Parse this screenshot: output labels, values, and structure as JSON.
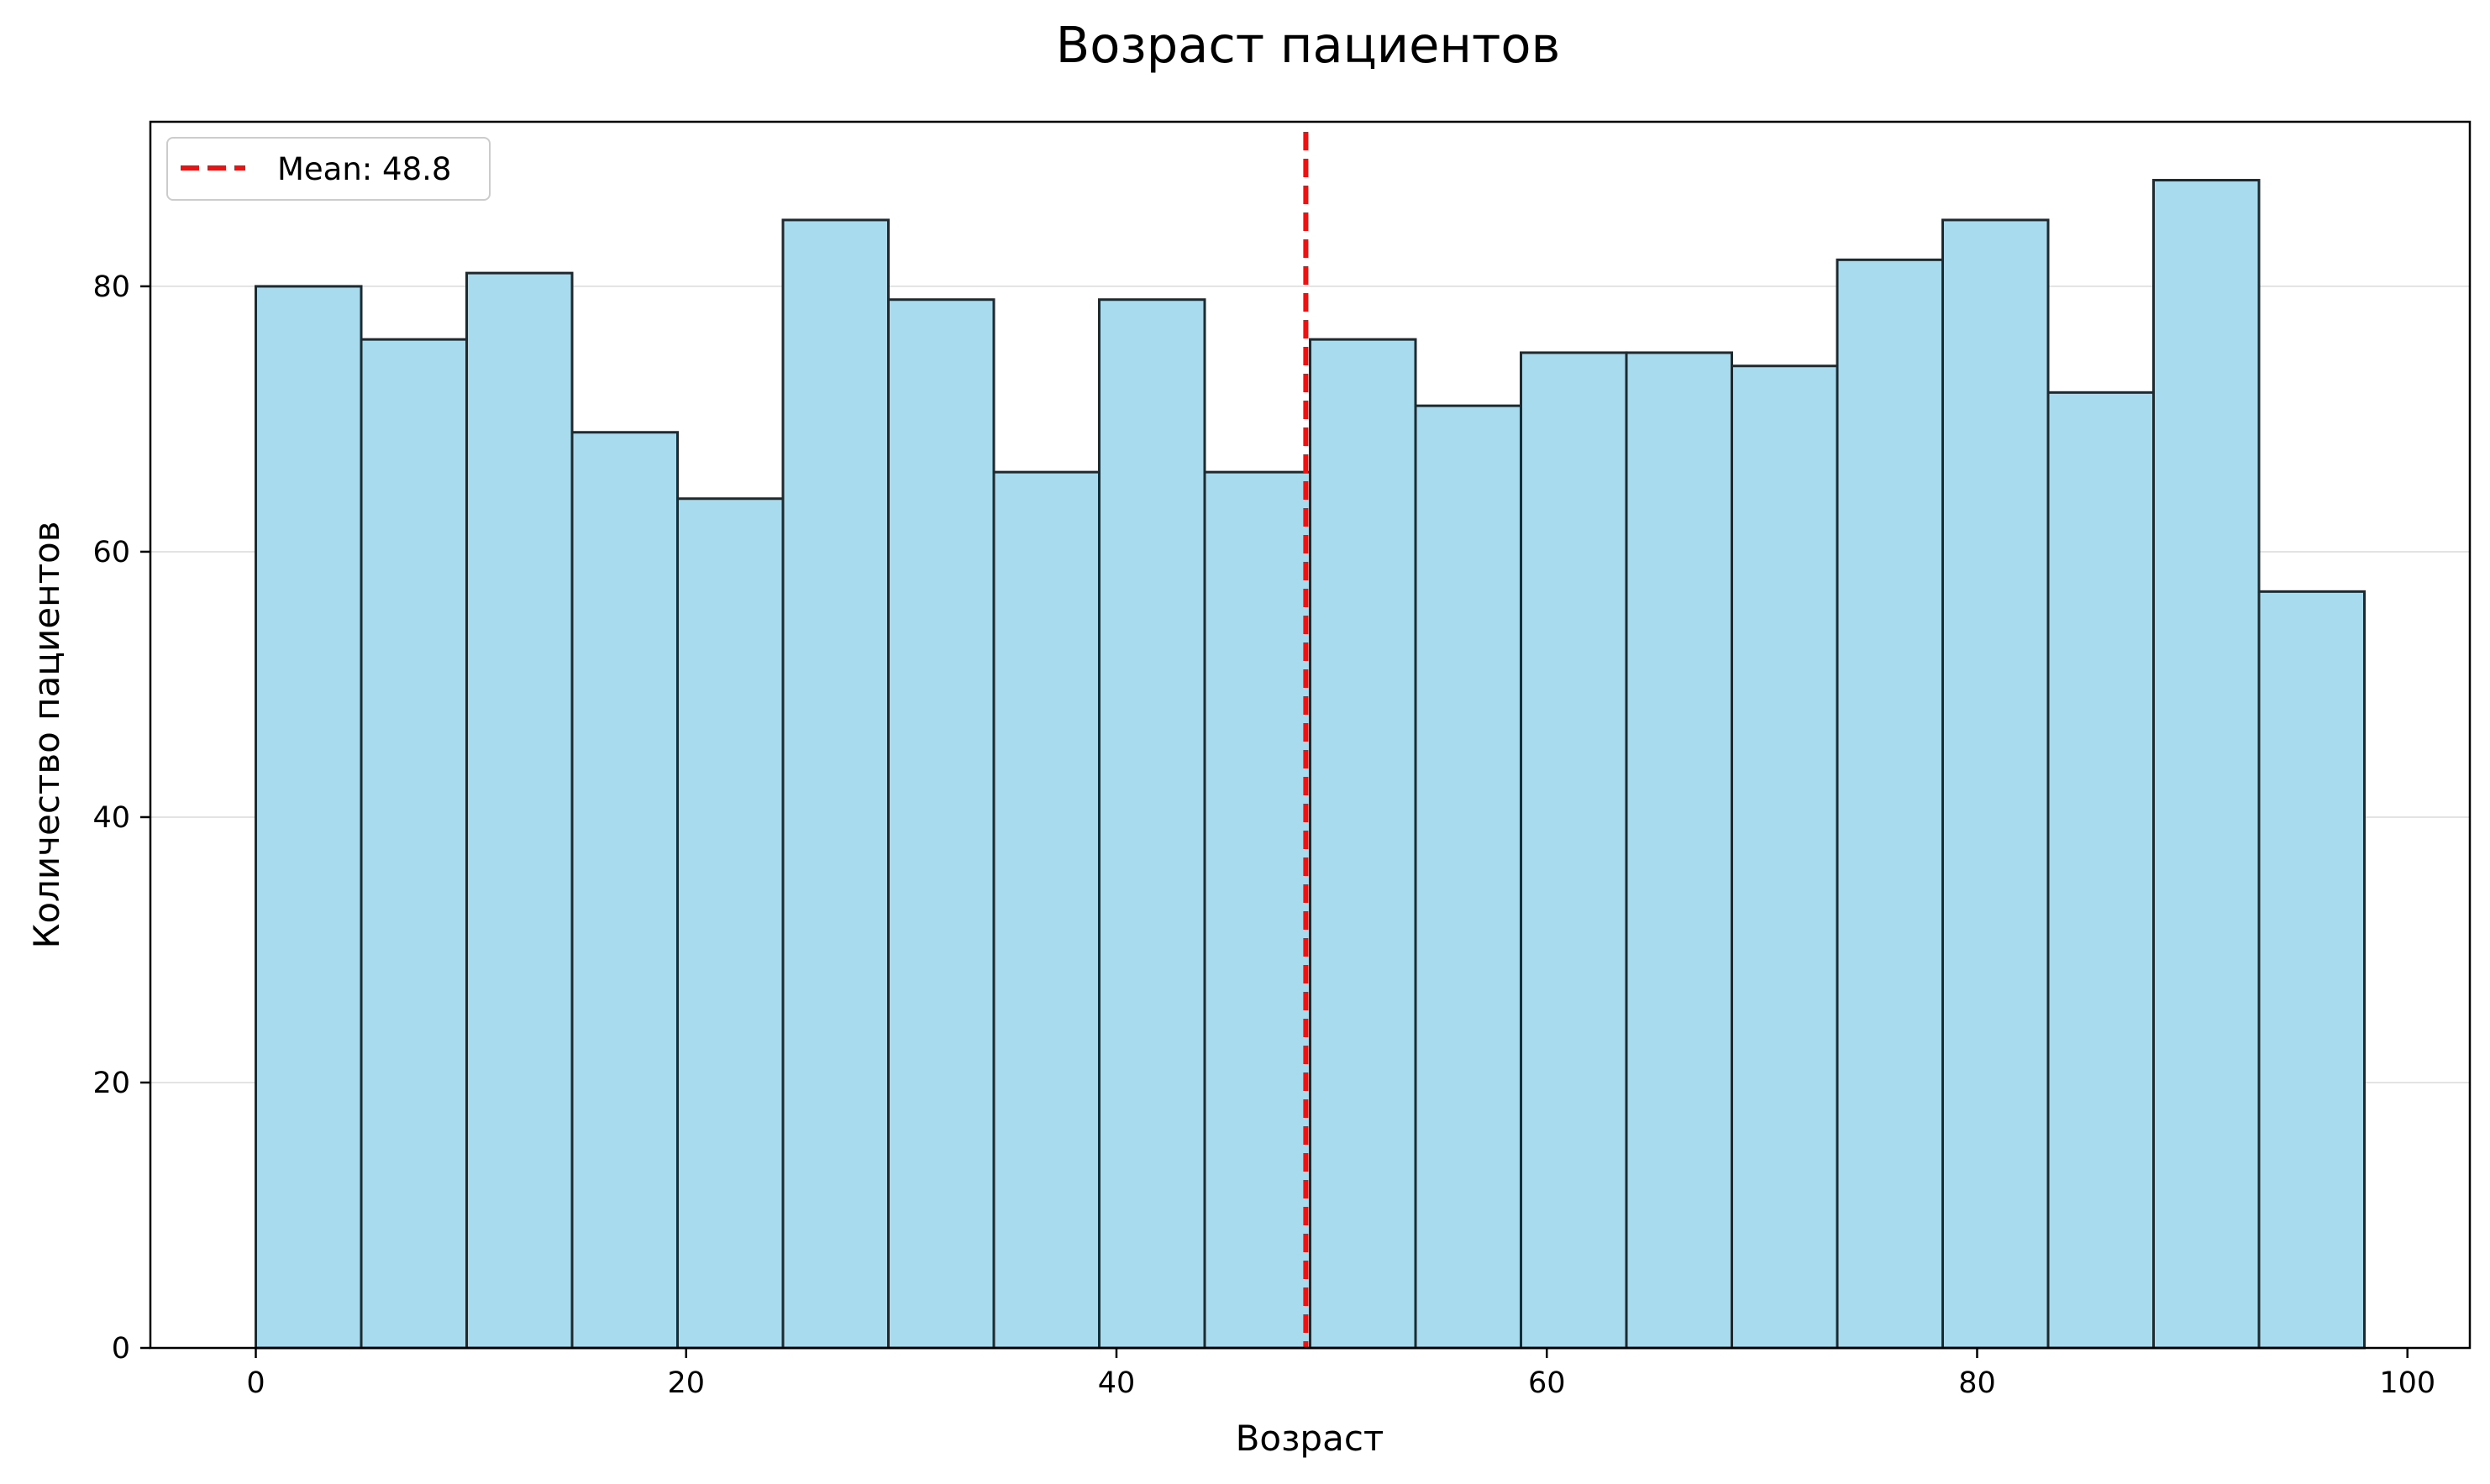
{
  "chart_data": {
    "type": "bar",
    "title": "Возраст пациентов",
    "xlabel": "Возраст",
    "ylabel": "Количество пациентов",
    "bins": [
      {
        "start": 0.0,
        "end": 4.9,
        "count": 80
      },
      {
        "start": 4.9,
        "end": 9.8,
        "count": 76
      },
      {
        "start": 9.8,
        "end": 14.7,
        "count": 81
      },
      {
        "start": 14.7,
        "end": 19.6,
        "count": 69
      },
      {
        "start": 19.6,
        "end": 24.5,
        "count": 64
      },
      {
        "start": 24.5,
        "end": 29.4,
        "count": 85
      },
      {
        "start": 29.4,
        "end": 34.3,
        "count": 79
      },
      {
        "start": 34.3,
        "end": 39.2,
        "count": 66
      },
      {
        "start": 39.2,
        "end": 44.1,
        "count": 79
      },
      {
        "start": 44.1,
        "end": 49.0,
        "count": 66
      },
      {
        "start": 49.0,
        "end": 53.9,
        "count": 76
      },
      {
        "start": 53.9,
        "end": 58.8,
        "count": 71
      },
      {
        "start": 58.8,
        "end": 63.7,
        "count": 75
      },
      {
        "start": 63.7,
        "end": 68.6,
        "count": 75
      },
      {
        "start": 68.6,
        "end": 73.5,
        "count": 74
      },
      {
        "start": 73.5,
        "end": 78.4,
        "count": 82
      },
      {
        "start": 78.4,
        "end": 83.3,
        "count": 85
      },
      {
        "start": 83.3,
        "end": 88.2,
        "count": 72
      },
      {
        "start": 88.2,
        "end": 93.1,
        "count": 88
      },
      {
        "start": 93.1,
        "end": 98.0,
        "count": 57
      }
    ],
    "mean_line": {
      "value": 48.8,
      "label": "Mean: 48.8",
      "color": "#ee1111",
      "style": "dashed"
    },
    "xlim": [
      -4.9,
      102.9
    ],
    "ylim": [
      0,
      92.4
    ],
    "xticks": [
      0,
      20,
      40,
      60,
      80,
      100
    ],
    "yticks": [
      0,
      20,
      40,
      60,
      80
    ],
    "grid": "horizontal",
    "legend_position": "top-left",
    "colors": {
      "bar_fill": "#a9dbee",
      "bar_edge": "#1d2a30",
      "grid": "#e3e3e3"
    }
  }
}
